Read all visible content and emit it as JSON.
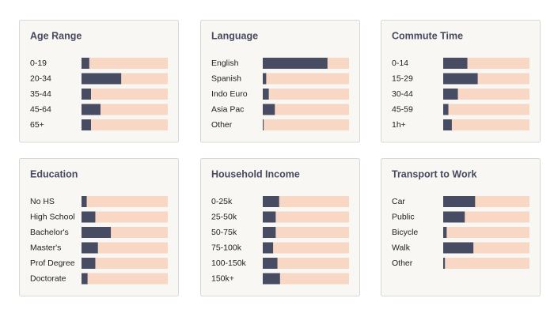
{
  "chart_data": [
    {
      "type": "bar",
      "orientation": "horizontal",
      "title": "Age Range",
      "categories": [
        "0-19",
        "20-34",
        "35-44",
        "45-64",
        "65+"
      ],
      "values": [
        9,
        46,
        11,
        22,
        11
      ],
      "xlim": [
        0,
        100
      ],
      "color": "#484c63",
      "track_color": "#f8d7c4"
    },
    {
      "type": "bar",
      "orientation": "horizontal",
      "title": "Language",
      "categories": [
        "English",
        "Spanish",
        "Indo Euro",
        "Asia Pac",
        "Other"
      ],
      "values": [
        75,
        4,
        7,
        14,
        1
      ],
      "xlim": [
        0,
        100
      ],
      "color": "#484c63",
      "track_color": "#f8d7c4"
    },
    {
      "type": "bar",
      "orientation": "horizontal",
      "title": "Commute Time",
      "categories": [
        "0-14",
        "15-29",
        "30-44",
        "45-59",
        "1h+"
      ],
      "values": [
        28,
        40,
        17,
        6,
        10
      ],
      "xlim": [
        0,
        100
      ],
      "color": "#484c63",
      "track_color": "#f8d7c4"
    },
    {
      "type": "bar",
      "orientation": "horizontal",
      "title": "Education",
      "categories": [
        "No HS",
        "High School",
        "Bachelor's",
        "Master's",
        "Prof Degree",
        "Doctorate"
      ],
      "values": [
        6,
        16,
        34,
        19,
        16,
        7
      ],
      "xlim": [
        0,
        100
      ],
      "color": "#484c63",
      "track_color": "#f8d7c4"
    },
    {
      "type": "bar",
      "orientation": "horizontal",
      "title": "Household Income",
      "categories": [
        "0-25k",
        "25-50k",
        "50-75k",
        "75-100k",
        "100-150k",
        "150k+"
      ],
      "values": [
        19,
        15,
        15,
        12,
        17,
        20
      ],
      "xlim": [
        0,
        100
      ],
      "color": "#484c63",
      "track_color": "#f8d7c4"
    },
    {
      "type": "bar",
      "orientation": "horizontal",
      "title": "Transport to Work",
      "categories": [
        "Car",
        "Public",
        "Bicycle",
        "Walk",
        "Other"
      ],
      "values": [
        37,
        25,
        4,
        35,
        2
      ],
      "xlim": [
        0,
        100
      ],
      "color": "#484c63",
      "track_color": "#f8d7c4"
    }
  ]
}
